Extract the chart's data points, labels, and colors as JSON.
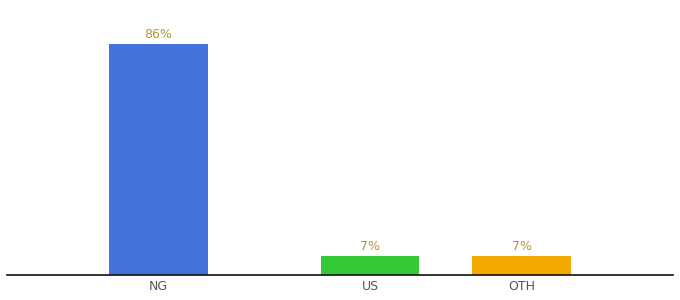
{
  "categories": [
    "NG",
    "US",
    "OTH"
  ],
  "values": [
    86,
    7,
    7
  ],
  "labels": [
    "86%",
    "7%",
    "7%"
  ],
  "bar_colors": [
    "#4472db",
    "#34c934",
    "#f5a800"
  ],
  "label_color": "#b8962e",
  "background_color": "#ffffff",
  "ylim": [
    0,
    100
  ],
  "label_fontsize": 9,
  "tick_fontsize": 9,
  "bar_width": 0.13,
  "x_positions": [
    0.22,
    0.5,
    0.7
  ],
  "xlim": [
    0.02,
    0.9
  ]
}
